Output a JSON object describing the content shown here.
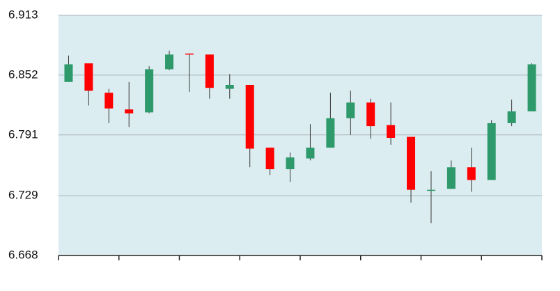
{
  "chart_data": {
    "type": "candlestick",
    "title": "",
    "xlabel": "",
    "ylabel": "",
    "ylim": [
      6.668,
      6.913
    ],
    "y_ticks": [
      "6.913",
      "6.852",
      "6.791",
      "6.729",
      "6.668"
    ],
    "grid": "horizontal",
    "legend": "none",
    "colors": {
      "plot_background": "#dcedf2",
      "up": "#2e9a6b",
      "down": "#ff0000",
      "wick": "#333333",
      "grid": "#a9b4b8"
    },
    "candles": [
      {
        "open": 6.845,
        "high": 6.872,
        "low": 6.845,
        "close": 6.863
      },
      {
        "open": 6.864,
        "high": 6.864,
        "low": 6.821,
        "close": 6.836
      },
      {
        "open": 6.834,
        "high": 6.838,
        "low": 6.803,
        "close": 6.818
      },
      {
        "open": 6.817,
        "high": 6.845,
        "low": 6.799,
        "close": 6.813
      },
      {
        "open": 6.814,
        "high": 6.861,
        "low": 6.813,
        "close": 6.858
      },
      {
        "open": 6.858,
        "high": 6.877,
        "low": 6.857,
        "close": 6.873
      },
      {
        "open": 6.874,
        "high": 6.874,
        "low": 6.835,
        "close": 6.873
      },
      {
        "open": 6.873,
        "high": 6.873,
        "low": 6.828,
        "close": 6.839
      },
      {
        "open": 6.838,
        "high": 6.853,
        "low": 6.828,
        "close": 6.842
      },
      {
        "open": 6.842,
        "high": 6.842,
        "low": 6.758,
        "close": 6.777
      },
      {
        "open": 6.778,
        "high": 6.778,
        "low": 6.75,
        "close": 6.756
      },
      {
        "open": 6.756,
        "high": 6.773,
        "low": 6.743,
        "close": 6.768
      },
      {
        "open": 6.767,
        "high": 6.802,
        "low": 6.765,
        "close": 6.778
      },
      {
        "open": 6.778,
        "high": 6.834,
        "low": 6.778,
        "close": 6.808
      },
      {
        "open": 6.808,
        "high": 6.836,
        "low": 6.791,
        "close": 6.824
      },
      {
        "open": 6.824,
        "high": 6.828,
        "low": 6.787,
        "close": 6.8
      },
      {
        "open": 6.801,
        "high": 6.824,
        "low": 6.781,
        "close": 6.788
      },
      {
        "open": 6.789,
        "high": 6.789,
        "low": 6.722,
        "close": 6.735
      },
      {
        "open": 6.735,
        "high": 6.754,
        "low": 6.701,
        "close": 6.735
      },
      {
        "open": 6.736,
        "high": 6.765,
        "low": 6.736,
        "close": 6.758
      },
      {
        "open": 6.758,
        "high": 6.778,
        "low": 6.733,
        "close": 6.745
      },
      {
        "open": 6.745,
        "high": 6.806,
        "low": 6.745,
        "close": 6.803
      },
      {
        "open": 6.803,
        "high": 6.827,
        "low": 6.8,
        "close": 6.815
      },
      {
        "open": 6.815,
        "high": 6.864,
        "low": 6.815,
        "close": 6.863
      }
    ]
  }
}
